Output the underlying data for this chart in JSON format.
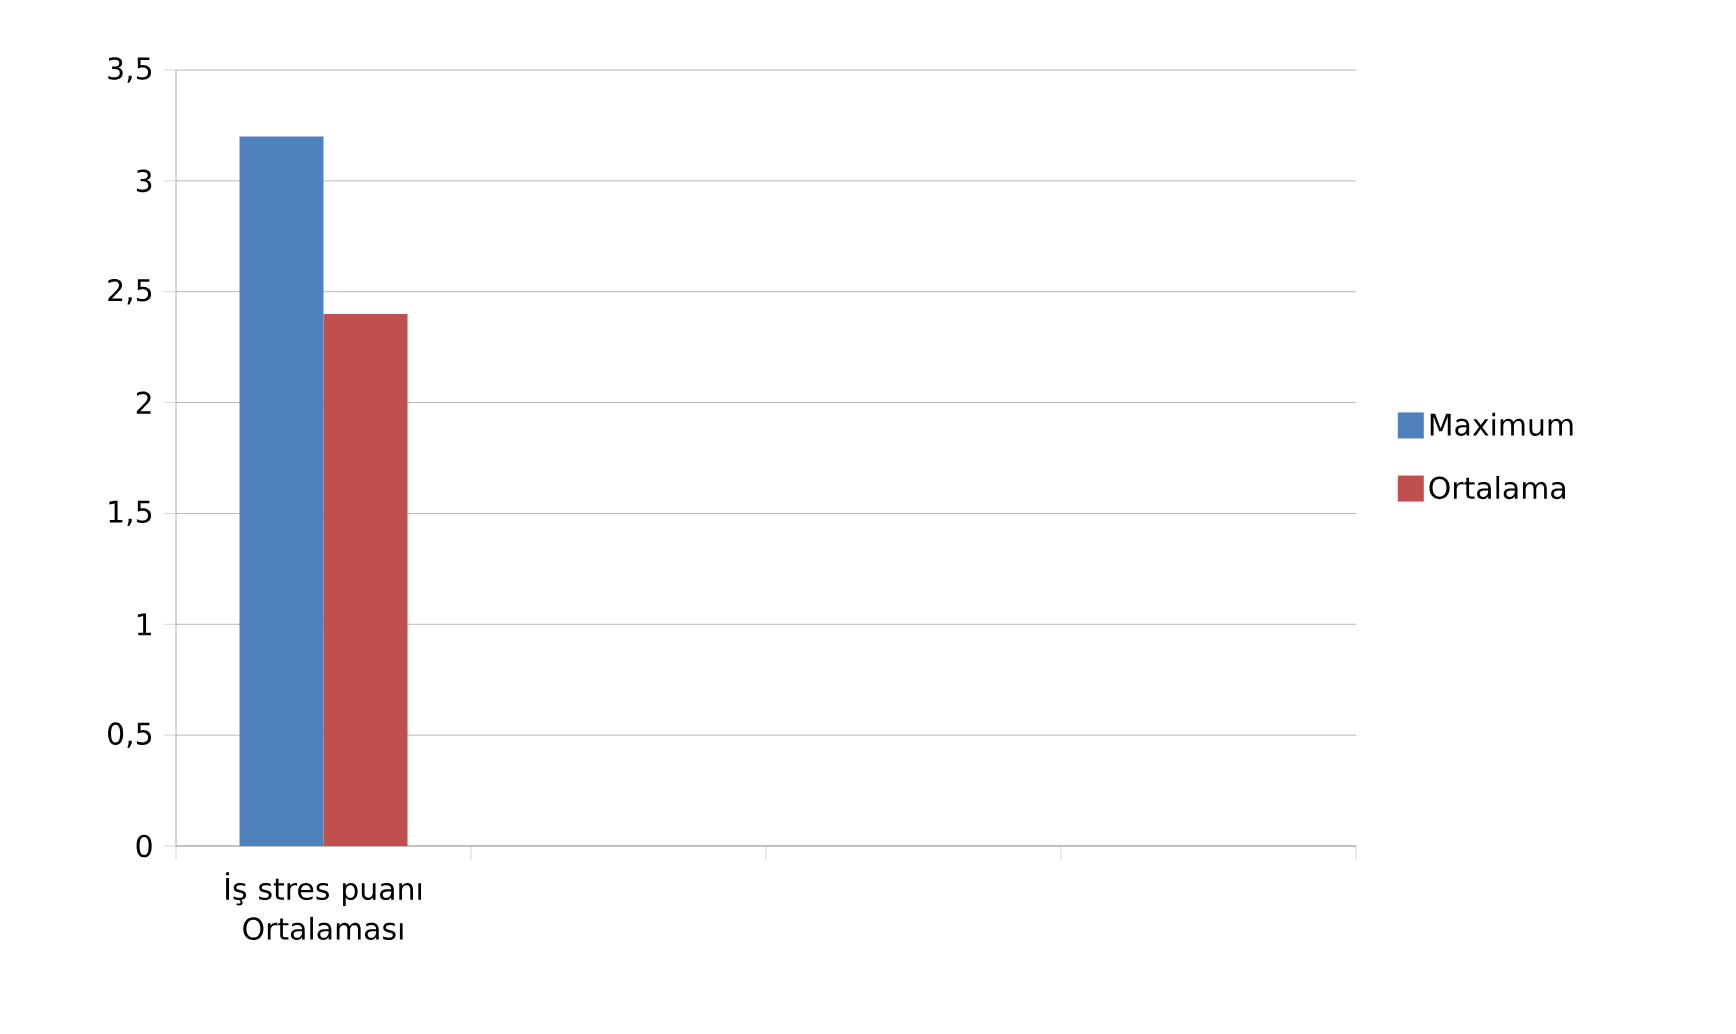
{
  "chart_data": {
    "type": "bar",
    "categories": [
      "İş stres puanı Ortalaması",
      null,
      null,
      null
    ],
    "series": [
      {
        "name": "Maximum",
        "color": "#4f81bd",
        "values": [
          3.2,
          null,
          null,
          null
        ]
      },
      {
        "name": "Ortalama",
        "color": "#c0504d",
        "values": [
          2.4,
          null,
          null,
          null
        ]
      }
    ],
    "ylim": [
      0,
      3.5
    ],
    "yticks": [
      0,
      {
        "value": 0.5,
        "label": "0,5"
      },
      1,
      {
        "value": 1.5,
        "label": "1,5"
      },
      2,
      {
        "value": 2.5,
        "label": "2,5"
      },
      3,
      {
        "value": 3.5,
        "label": "3,5"
      }
    ],
    "grid": "y",
    "legend": "right"
  }
}
